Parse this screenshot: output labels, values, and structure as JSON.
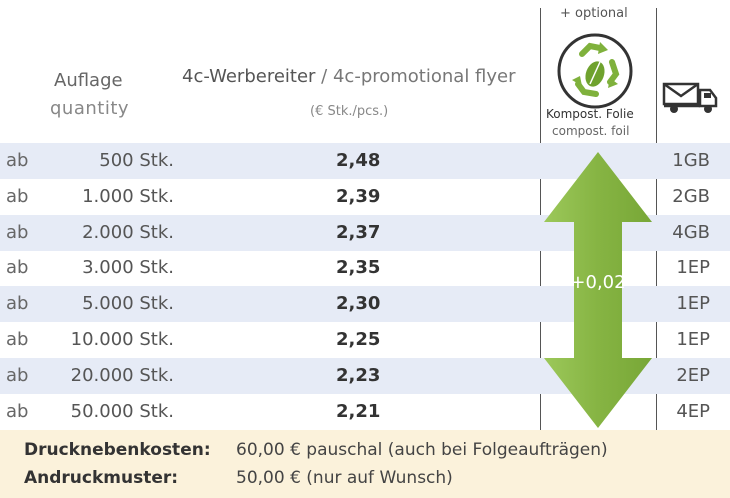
{
  "header": {
    "quantity_de": "Auflage",
    "quantity_en": "quantity",
    "product_de": "4c-Werbereiter",
    "separator": " / ",
    "product_en": "4c-promotional flyer",
    "unit_note": "(€ Stk./pcs.)",
    "optional_label": "+ optional",
    "foil_de": "Kompost. Folie",
    "foil_en": "compost. foil",
    "recycle_icon": "recycle-leaf-icon",
    "shipping_icon": "mail-truck-icon"
  },
  "rows": [
    {
      "prefix": "ab",
      "quantity": "500 Stk.",
      "price": "2,48",
      "shipping": "1GB"
    },
    {
      "prefix": "ab",
      "quantity": "1.000 Stk.",
      "price": "2,39",
      "shipping": "2GB"
    },
    {
      "prefix": "ab",
      "quantity": "2.000 Stk.",
      "price": "2,37",
      "shipping": "4GB"
    },
    {
      "prefix": "ab",
      "quantity": "3.000 Stk.",
      "price": "2,35",
      "shipping": "1EP"
    },
    {
      "prefix": "ab",
      "quantity": "5.000 Stk.",
      "price": "2,30",
      "shipping": "1EP"
    },
    {
      "prefix": "ab",
      "quantity": "10.000 Stk.",
      "price": "2,25",
      "shipping": "1EP"
    },
    {
      "prefix": "ab",
      "quantity": "20.000 Stk.",
      "price": "2,23",
      "shipping": "2EP"
    },
    {
      "prefix": "ab",
      "quantity": "50.000 Stk.",
      "price": "2,21",
      "shipping": "4EP"
    }
  ],
  "foil_surcharge": "+0,02",
  "footer": {
    "side_costs_label": "Drucknebenkosten:",
    "side_costs_value": "60,00 € pauschal (auch bei Folgeaufträgen)",
    "proof_label": "Andruckmuster:",
    "proof_value": "50,00 € (nur auf Wunsch)"
  },
  "colors": {
    "row_shade": "#e6ebf6",
    "arrow_green": "#8dbb4a",
    "footer_bg": "#fbf2db"
  }
}
